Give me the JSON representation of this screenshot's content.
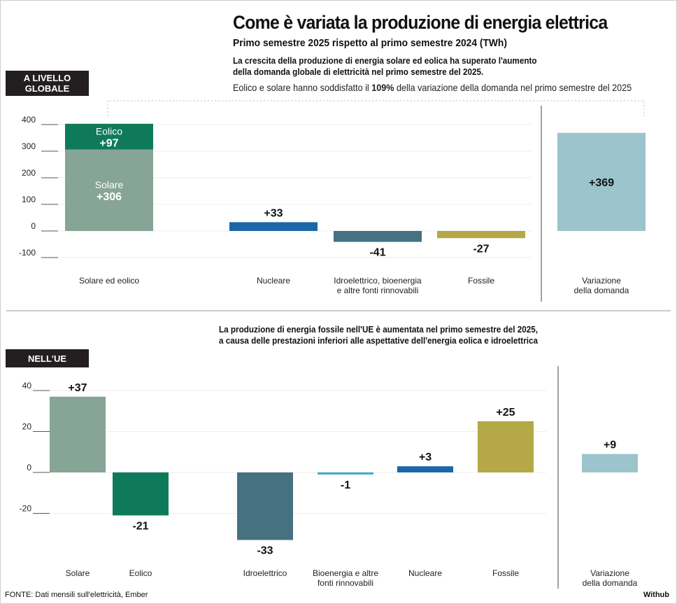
{
  "header": {
    "title": "Come è variata la produzione di energia elettrica",
    "subtitle": "Primo semestre 2025 rispetto al primo semestre 2024 (TWh)",
    "global_lead_1": "La crescita della produzione di energia solare ed eolica ha superato l'aumento",
    "global_lead_2": "della domanda globale di elettricità nel primo semestre del 2025.",
    "note_before": "Eolico e solare hanno soddisfatto il ",
    "note_bold": "109%",
    "note_after": " della variazione della domanda nel primo semestre del 2025",
    "tag_global_1": "A LIVELLO",
    "tag_global_2": "GLOBALE",
    "tag_eu": "NELL'UE",
    "eu_lead_1": "La produzione di energia fossile nell'UE è aumentata nel primo semestre del 2025,",
    "eu_lead_2": "a causa delle prestazioni inferiori alle aspettative dell'energia eolica e idroelettrica"
  },
  "footer": {
    "source": "FONTE: Dati mensili sull'elettricità, Ember",
    "credit": "Withub"
  },
  "chart_data": [
    {
      "type": "bar",
      "title": "A LIVELLO GLOBALE",
      "ylim": [
        -100,
        400
      ],
      "yticks": [
        400,
        300,
        200,
        100,
        0,
        -100
      ],
      "categories": [
        [
          "Solare ed eolico"
        ],
        [
          "Nucleare"
        ],
        [
          "Idroelettrico, bioenergia",
          "e altre fonti rinnovabili"
        ],
        [
          "Fossile"
        ],
        [
          "Variazione",
          "della domanda"
        ]
      ],
      "bars": [
        {
          "category": 0,
          "segments": [
            {
              "name": "Solare",
              "value": 306,
              "label": "+306",
              "color": "#86a596"
            },
            {
              "name": "Eolico",
              "value": 97,
              "label": "+97",
              "color": "#0f7a5a"
            }
          ]
        },
        {
          "category": 1,
          "value": 33,
          "label": "+33",
          "color": "#1a66a8"
        },
        {
          "category": 2,
          "value": -41,
          "label": "-41",
          "color": "#457181"
        },
        {
          "category": 3,
          "value": -27,
          "label": "-27",
          "color": "#b5a846"
        },
        {
          "category": 4,
          "value": 369,
          "label": "+369",
          "color": "#9bc4cc"
        }
      ]
    },
    {
      "type": "bar",
      "title": "NELL'UE",
      "ylim": [
        -33,
        40
      ],
      "yticks": [
        40,
        20,
        0,
        -20
      ],
      "categories": [
        [
          "Solare"
        ],
        [
          "Eolico"
        ],
        [
          "Idroelettrico"
        ],
        [
          "Bioenergia e altre",
          "fonti rinnovabili"
        ],
        [
          "Nucleare"
        ],
        [
          "Fossile"
        ],
        [
          "Variazione",
          "della domanda"
        ]
      ],
      "bars": [
        {
          "category": 0,
          "value": 37,
          "label": "+37",
          "color": "#86a596"
        },
        {
          "category": 1,
          "value": -21,
          "label": "-21",
          "color": "#0f7a5a"
        },
        {
          "category": 2,
          "value": -33,
          "label": "-33",
          "color": "#457181"
        },
        {
          "category": 3,
          "value": -1,
          "label": "-1",
          "color": "#3aa8d8"
        },
        {
          "category": 4,
          "value": 3,
          "label": "+3",
          "color": "#1a66a8"
        },
        {
          "category": 5,
          "value": 25,
          "label": "+25",
          "color": "#b5a846"
        },
        {
          "category": 6,
          "value": 9,
          "label": "+9",
          "color": "#9bc4cc"
        }
      ]
    }
  ]
}
